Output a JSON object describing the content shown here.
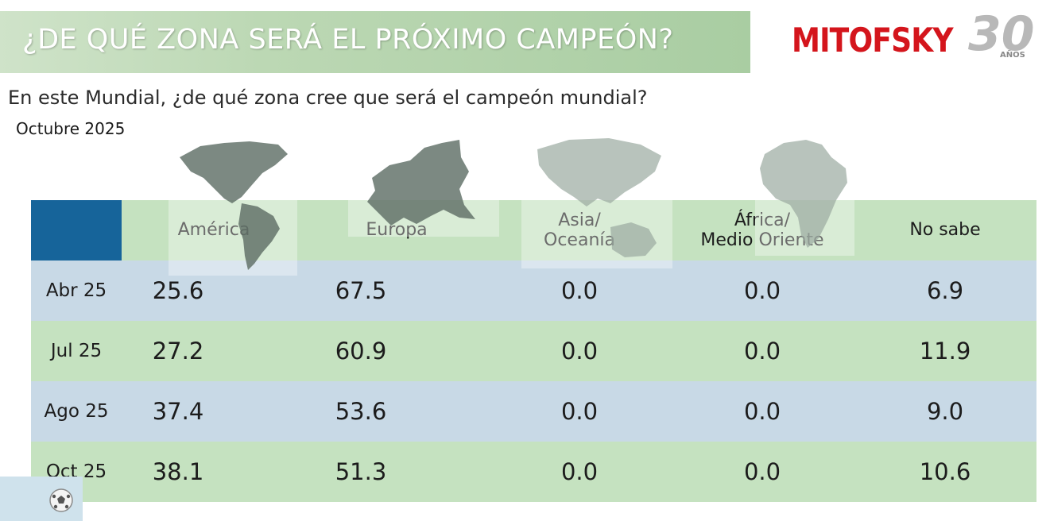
{
  "title": "¿DE QUÉ ZONA SERÁ EL PRÓXIMO CAMPEÓN?",
  "logo": {
    "brand": "MITOFSKY",
    "number": "30",
    "years": "AÑOS"
  },
  "question": "En este Mundial, ¿de qué zona cree que será el campeón mundial?",
  "period": "Octubre 2025",
  "colors": {
    "banner_green": "#bcd8b4",
    "row_green": "#c5e2c0",
    "row_blue": "#c8d9e6",
    "corner_blue": "#16649a",
    "logo_red": "#d4151c"
  },
  "map_icons": [
    "americas-map-icon",
    "europe-map-icon",
    "asia-oceania-map-icon",
    "africa-map-icon",
    "soccer-ball-icon"
  ],
  "chart_data": {
    "type": "table",
    "columns": [
      "América",
      "Europa",
      "Asia/ Oceanía",
      "África/ Medio Oriente",
      "No sabe"
    ],
    "column_lines": [
      [
        "América"
      ],
      [
        "Europa"
      ],
      [
        "Asia/",
        "Oceanía"
      ],
      [
        "África/",
        "Medio Oriente"
      ],
      [
        "No sabe"
      ]
    ],
    "rows": [
      {
        "label": "Abr 25",
        "values": [
          "25.6",
          "67.5",
          "0.0",
          "0.0",
          "6.9"
        ]
      },
      {
        "label": "Jul 25",
        "values": [
          "27.2",
          "60.9",
          "0.0",
          "0.0",
          "11.9"
        ]
      },
      {
        "label": "Ago 25",
        "values": [
          "37.4",
          "53.6",
          "0.0",
          "0.0",
          "9.0"
        ]
      },
      {
        "label": "Oct 25",
        "values": [
          "38.1",
          "51.3",
          "0.0",
          "0.0",
          "10.6"
        ]
      }
    ]
  }
}
